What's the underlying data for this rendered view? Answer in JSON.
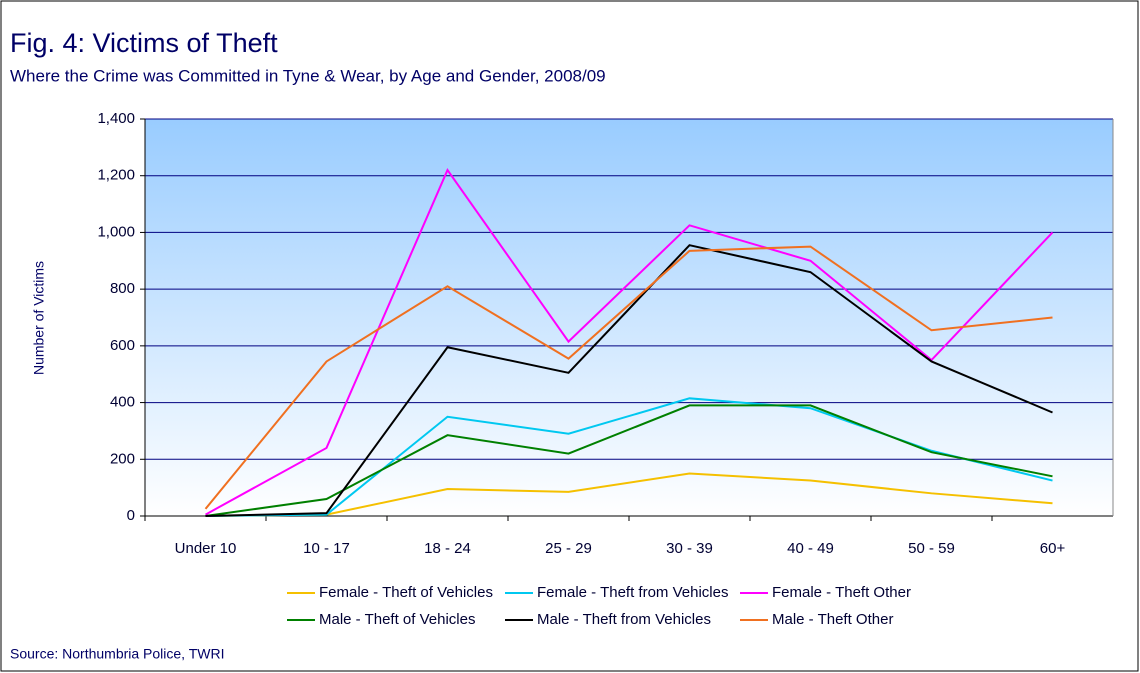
{
  "chart_data": {
    "type": "line",
    "title": "Fig. 4: Victims of Theft",
    "subtitle": "Where the Crime was Committed in Tyne & Wear, by Age and Gender, 2008/09",
    "y_label": "Number of Victims",
    "source": "Source: Northumbria Police, TWRI",
    "categories": [
      "Under 10",
      "10 - 17",
      "18 - 24",
      "25 - 29",
      "30 - 39",
      "40 - 49",
      "50 - 59",
      "60+"
    ],
    "series": [
      {
        "name": "Female - Theft of Vehicles",
        "color": "#f5c000",
        "values": [
          0,
          5,
          95,
          85,
          150,
          125,
          80,
          45
        ]
      },
      {
        "name": "Female - Theft from Vehicles",
        "color": "#00c8f0",
        "values": [
          0,
          5,
          350,
          290,
          415,
          380,
          230,
          125
        ]
      },
      {
        "name": "Female - Theft Other",
        "color": "#ff00ff",
        "values": [
          5,
          240,
          1220,
          615,
          1025,
          900,
          550,
          1000
        ]
      },
      {
        "name": "Male - Theft of Vehicles",
        "color": "#008000",
        "values": [
          0,
          60,
          285,
          220,
          390,
          390,
          225,
          140
        ]
      },
      {
        "name": "Male - Theft from Vehicles",
        "color": "#000000",
        "values": [
          0,
          10,
          595,
          505,
          955,
          860,
          545,
          365
        ]
      },
      {
        "name": "Male - Theft Other",
        "color": "#f07020",
        "values": [
          25,
          545,
          810,
          555,
          935,
          950,
          655,
          700
        ]
      }
    ],
    "ylim": [
      0,
      1400
    ],
    "yticks": [
      0,
      200,
      400,
      600,
      800,
      {
        "value": 1000,
        "label": "1,000"
      },
      {
        "value": 1200,
        "label": "1,200"
      },
      {
        "value": 1400,
        "label": "1,400"
      }
    ],
    "grid": true,
    "legend": "bottom"
  }
}
